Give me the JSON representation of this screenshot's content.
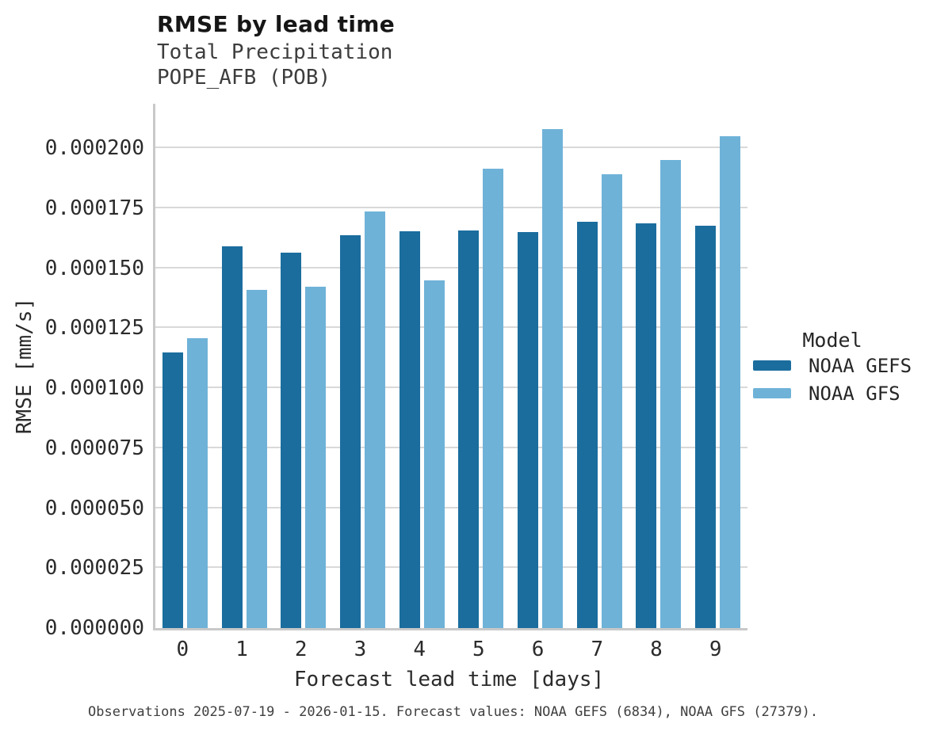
{
  "chart_data": {
    "type": "bar",
    "title": "RMSE by lead time",
    "subtitle": [
      "Total Precipitation",
      "POPE_AFB (POB)"
    ],
    "categories": [
      "0",
      "1",
      "2",
      "3",
      "4",
      "5",
      "6",
      "7",
      "8",
      "9"
    ],
    "series": [
      {
        "name": "NOAA GEFS",
        "color": "#1b6d9e",
        "values": [
          0.000115,
          0.0001591,
          0.0001565,
          0.0001639,
          0.0001653,
          0.0001658,
          0.000165,
          0.0001694,
          0.0001688,
          0.0001677
        ]
      },
      {
        "name": "NOAA GFS",
        "color": "#6fb2d8",
        "values": [
          0.0001209,
          0.0001411,
          0.0001422,
          0.0001736,
          0.000145,
          0.0001914,
          0.000208,
          0.0001892,
          0.0001951,
          0.0002052
        ]
      }
    ],
    "xlabel": "Forecast lead time [days]",
    "ylabel": "RMSE [mm/s]",
    "ylim": [
      0,
      0.0002186
    ],
    "yticks": [
      0,
      2.5e-05,
      5e-05,
      7.5e-05,
      0.0001,
      0.000125,
      0.00015,
      0.000175,
      0.0002
    ],
    "ytick_labels": [
      "0.000000",
      "0.000025",
      "0.000050",
      "0.000075",
      "0.000100",
      "0.000125",
      "0.000150",
      "0.000175",
      "0.000200"
    ],
    "grid": "horizontal",
    "legend": {
      "title": "Model",
      "position": "right"
    },
    "caption": "Observations 2025-07-19 - 2026-01-15. Forecast values: NOAA GEFS (6834), NOAA GFS (27379)."
  },
  "colors": {
    "gefs": "#1b6d9e",
    "gfs": "#6fb2d8",
    "gridline": "#d9d9d9",
    "spine": "#c9c9c9"
  }
}
